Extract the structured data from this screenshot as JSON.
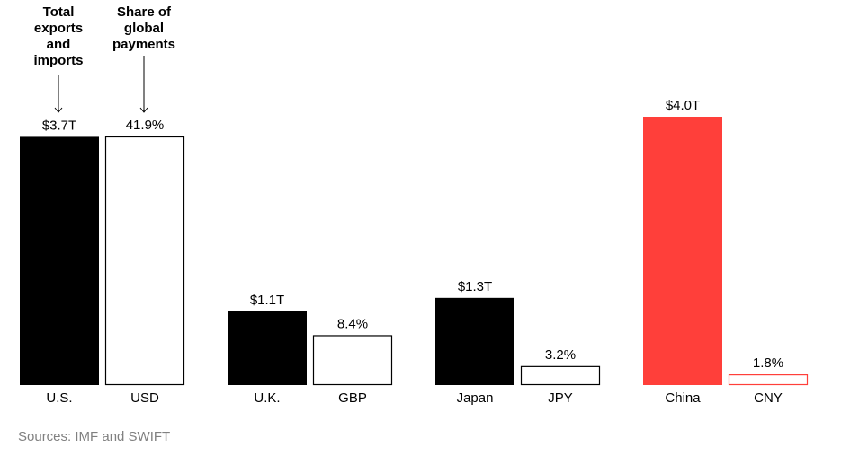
{
  "header": {
    "exports_label": "Total\nexports\nand\nimports",
    "payments_label": "Share of\nglobal\npayments"
  },
  "source": "Sources: IMF and SWIFT",
  "colors": {
    "black": "#000000",
    "white": "#ffffff",
    "red": "#ff3f3a",
    "red_outline": "#ff3f3a"
  },
  "chart_data": {
    "type": "bar",
    "pairs": [
      {
        "country": "U.S.",
        "trade_trillion_usd": 3.7,
        "trade_label": "$3.7T",
        "currency": "USD",
        "payments_share_pct": 41.9,
        "share_label": "41.9%",
        "highlight": false
      },
      {
        "country": "U.K.",
        "trade_trillion_usd": 1.1,
        "trade_label": "$1.1T",
        "currency": "GBP",
        "payments_share_pct": 8.4,
        "share_label": "8.4%",
        "highlight": false
      },
      {
        "country": "Japan",
        "trade_trillion_usd": 1.3,
        "trade_label": "$1.3T",
        "currency": "JPY",
        "payments_share_pct": 3.2,
        "share_label": "3.2%",
        "highlight": false
      },
      {
        "country": "China",
        "trade_trillion_usd": 4.0,
        "trade_label": "$4.0T",
        "currency": "CNY",
        "payments_share_pct": 1.8,
        "share_label": "1.8%",
        "highlight": true
      }
    ]
  }
}
